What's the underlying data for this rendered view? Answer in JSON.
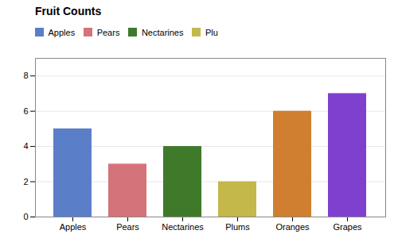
{
  "chart_data": {
    "type": "bar",
    "title": "Fruit Counts",
    "categories": [
      "Apples",
      "Pears",
      "Nectarines",
      "Plums",
      "Oranges",
      "Grapes"
    ],
    "values": [
      5,
      3,
      4,
      2,
      6,
      7
    ],
    "colors": [
      "#5B7EC9",
      "#D4737A",
      "#3E7A2A",
      "#C4B84A",
      "#CF7F2F",
      "#7F3FCF"
    ],
    "legend_labels": [
      "Apples",
      "Pears",
      "Nectarines",
      "Plu"
    ],
    "legend": "upper center",
    "ylim": [
      0,
      9
    ],
    "yticks": [
      0,
      2,
      4,
      6,
      8
    ],
    "grid": true
  }
}
